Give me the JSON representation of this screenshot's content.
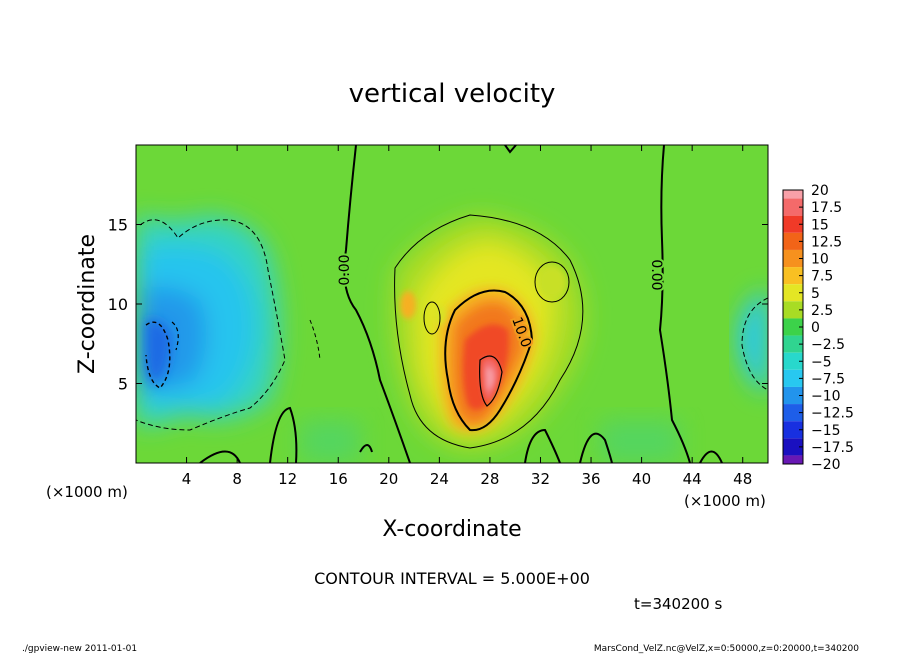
{
  "chart_data": {
    "type": "heatmap",
    "title": "vertical velocity",
    "xlabel": "X-coordinate",
    "ylabel": "Z-coordinate",
    "x_unit_left": "(×1000 m)",
    "x_unit_right": "(×1000 m)",
    "xlim": [
      0,
      50
    ],
    "ylim": [
      0,
      20
    ],
    "x_ticks": [
      4,
      8,
      12,
      16,
      20,
      24,
      28,
      32,
      36,
      40,
      44,
      48
    ],
    "y_ticks": [
      5,
      10,
      15
    ],
    "colorbar": {
      "labels": [
        "20",
        "17.5",
        "15",
        "12.5",
        "10",
        "7.5",
        "5",
        "2.5",
        "0",
        "−2.5",
        "−5",
        "−7.5",
        "−10",
        "−12.5",
        "−15",
        "−17.5",
        "−20"
      ],
      "colors": [
        "#f8a0a8",
        "#f46a6a",
        "#f03a28",
        "#f26418",
        "#f6911e",
        "#f9c022",
        "#e4e624",
        "#a8dc24",
        "#3cd24a",
        "#30d490",
        "#28d8cc",
        "#28c8f0",
        "#2294ec",
        "#1e5ee8",
        "#1830e0",
        "#1a10c0",
        "#6818b4"
      ]
    },
    "contour_labels": [
      {
        "text": "0.00",
        "x": 16.8,
        "y": 12
      },
      {
        "text": "0.00",
        "x": 41.2,
        "y": 12
      },
      {
        "text": "10.0",
        "x": 30.2,
        "y": 8.2
      }
    ],
    "annotations": {
      "contour_interval": "CONTOUR INTERVAL = 5.000E+00",
      "time": "t=340200 s",
      "footer_left": "./gpview-new   2011-01-01",
      "footer_right": "MarsCond_VelZ.nc@VelZ,x=0:50000,z=0:20000,t=340200"
    }
  }
}
